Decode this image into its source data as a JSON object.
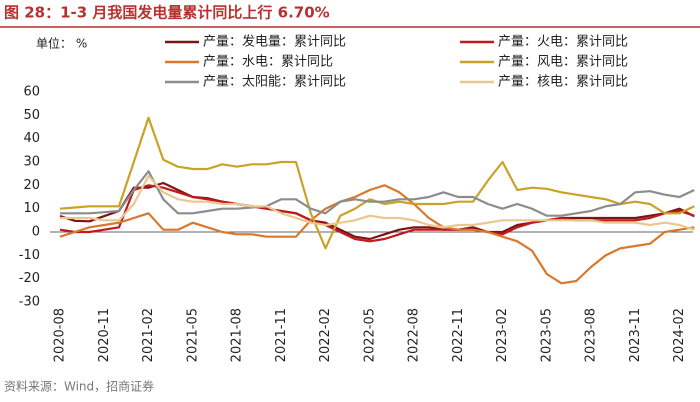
{
  "chart_data": {
    "type": "line",
    "title": "图 28：1-3 月我国发电量累计同比上行 6.70%",
    "unit_label": "单位： %",
    "source": "资料来源：Wind，招商证券",
    "categories": [
      "2020-08",
      null,
      null,
      "2020-11",
      null,
      null,
      "2021-02",
      null,
      null,
      "2021-05",
      null,
      null,
      "2021-08",
      null,
      null,
      "2021-11",
      null,
      null,
      "2022-02",
      null,
      null,
      "2022-05",
      null,
      null,
      "2022-08",
      null,
      null,
      "2022-11",
      null,
      null,
      "2023-02",
      null,
      null,
      "2023-05",
      null,
      null,
      "2023-08",
      null,
      null,
      "2023-11",
      null,
      null,
      "2024-02",
      null
    ],
    "series": [
      {
        "name": "产量：发电量：累计同比",
        "color": "#7b1416",
        "values": [
          6.8,
          4.8,
          4.6,
          6.8,
          9,
          19,
          19,
          21,
          18,
          15,
          14.5,
          13,
          12,
          11,
          10,
          9,
          8,
          5,
          4,
          1,
          -2,
          -3,
          -1,
          1,
          2,
          2,
          1,
          1,
          2,
          0,
          0,
          3,
          4,
          5,
          6,
          6,
          6,
          6,
          6,
          6,
          7,
          8,
          10,
          6.7
        ]
      },
      {
        "name": "产量：火电：累计同比",
        "color": "#c0191e",
        "values": [
          1,
          0,
          0,
          1,
          2,
          18,
          20,
          19,
          17,
          15,
          14,
          13,
          12,
          11,
          10,
          9,
          8,
          5,
          3,
          0,
          -3,
          -4,
          -3,
          -1,
          1,
          1,
          1,
          1,
          1,
          0,
          -1,
          2,
          4,
          5,
          6,
          5,
          5,
          5,
          5,
          5,
          6,
          8,
          9,
          7
        ]
      },
      {
        "name": "产量：水电：累计同比",
        "color": "#d9772b",
        "values": [
          -2,
          0,
          2,
          3,
          4,
          6,
          8,
          1,
          1,
          4,
          2,
          0,
          -1,
          -1,
          -2,
          -2,
          -2,
          5,
          10,
          13,
          15,
          18,
          20,
          17,
          12,
          6,
          2,
          1,
          1,
          0,
          -2,
          -4,
          -8,
          -18,
          -22,
          -21,
          -15,
          -10,
          -7,
          -6,
          -5,
          0,
          1,
          2
        ]
      },
      {
        "name": "产量：风电：累计同比",
        "color": "#c9a227",
        "values": [
          10,
          10.5,
          11,
          11,
          11,
          30,
          49,
          31,
          28,
          27,
          27,
          29,
          28,
          29,
          29,
          30,
          30,
          8,
          -7,
          7,
          10,
          14,
          12,
          13,
          12,
          12,
          12,
          13,
          13,
          22,
          30,
          18,
          19,
          18.5,
          17,
          16,
          15,
          14,
          12,
          13,
          12,
          8,
          8,
          11
        ]
      },
      {
        "name": "产量：太阳能：累计同比",
        "color": "#8c8c8c",
        "values": [
          8,
          8,
          8,
          8.5,
          9,
          18,
          26,
          14,
          8,
          8,
          9,
          10,
          10,
          10.5,
          11,
          14,
          14,
          10,
          8,
          13,
          14,
          13,
          13,
          14,
          14,
          15,
          17,
          15,
          15,
          12,
          10,
          12,
          10,
          7,
          7,
          8,
          9,
          11,
          12,
          17,
          17.5,
          16,
          15,
          18
        ]
      },
      {
        "name": "产量：核电：累计同比",
        "color": "#e8c88e",
        "values": [
          6,
          6,
          6,
          5,
          5,
          12,
          24,
          17,
          14,
          13,
          13,
          12,
          12,
          11,
          11,
          8,
          6,
          4,
          3,
          4,
          5,
          7,
          6,
          6,
          5,
          3,
          2,
          3,
          3,
          4,
          5,
          5,
          5,
          5,
          5,
          5,
          5,
          4,
          4,
          4,
          3,
          4,
          3,
          1
        ]
      }
    ],
    "ylim": [
      -30,
      60
    ],
    "yticks": [
      -30,
      -20,
      -10,
      0,
      10,
      20,
      30,
      40,
      50,
      60
    ],
    "grid": false
  }
}
